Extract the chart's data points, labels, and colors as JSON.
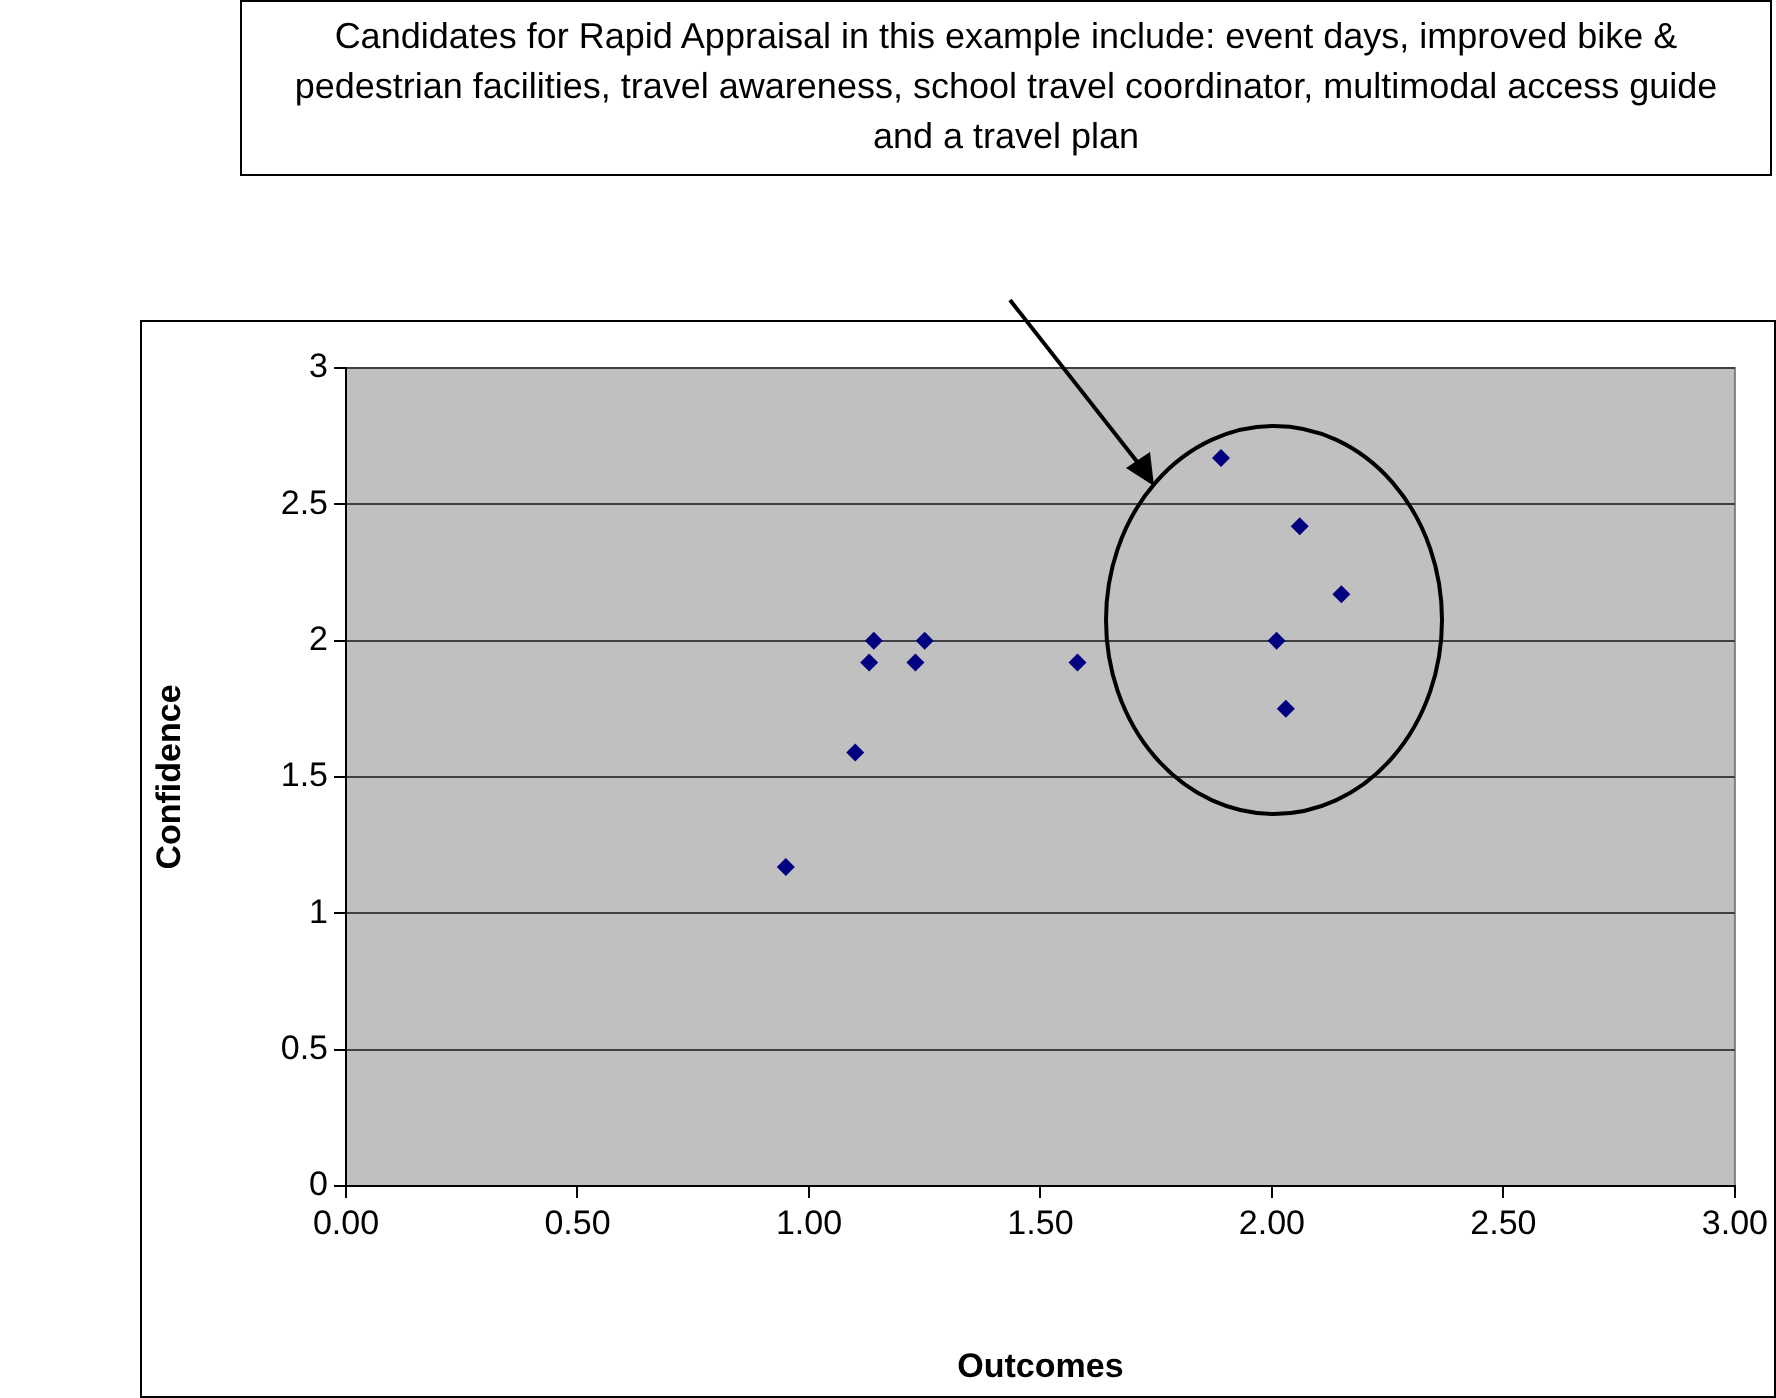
{
  "chart_data": {
    "type": "scatter",
    "xlabel": "Outcomes",
    "ylabel": "Confidence",
    "annotations": [
      "Candidates for Rapid Appraisal in this example include: event days, improved bike & pedestrian facilities, travel awareness, school travel coordinator, multimodal access guide and a travel plan"
    ],
    "series": [
      {
        "color": "#000080",
        "x": [
          0.95,
          1.1,
          1.13,
          1.14,
          1.23,
          1.25,
          1.58,
          1.89,
          2.06,
          2.15,
          2.01,
          2.03
        ],
        "values": [
          1.17,
          1.59,
          1.92,
          2.0,
          1.92,
          2.0,
          1.92,
          2.67,
          2.42,
          2.17,
          2.0,
          1.75
        ]
      }
    ],
    "xlim": [
      0,
      3
    ],
    "xticks": [
      {
        "value": 0,
        "label": "0.00"
      },
      {
        "value": 0.5,
        "label": "0.50"
      },
      {
        "value": 1,
        "label": "1.00"
      },
      {
        "value": 1.5,
        "label": "1.50"
      },
      {
        "value": 2,
        "label": "2.00"
      },
      {
        "value": 2.5,
        "label": "2.50"
      },
      {
        "value": 3,
        "label": "3.00"
      }
    ],
    "ylim": [
      0,
      3
    ],
    "yticks": [
      0,
      0.5,
      1,
      1.5,
      2,
      2.5,
      3
    ],
    "grid": "y",
    "legend": false,
    "marker": "diamond"
  }
}
